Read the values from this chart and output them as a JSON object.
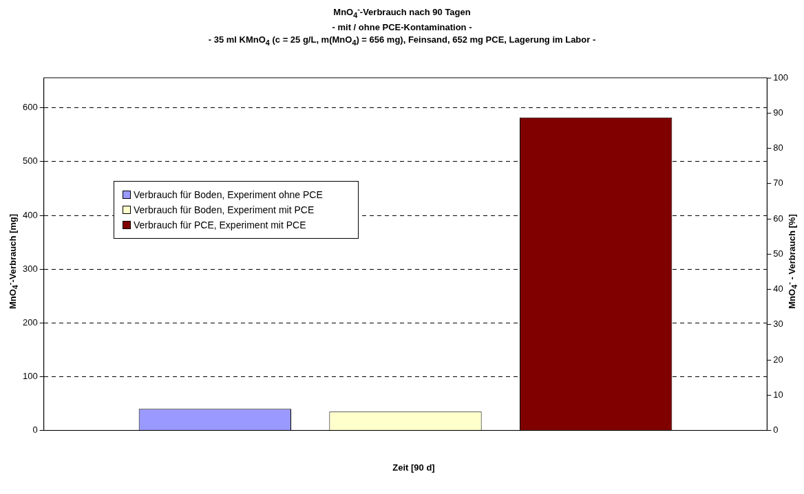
{
  "chart_data": {
    "type": "bar",
    "title": "MnO$_{4}$$^{-}$-Verbrauch nach 90 Tagen",
    "subtitle": "- mit / ohne PCE-Kontamination -\n-  35 ml KMnO$_{4}$ (c = 25 g/L, m(MnO$_{4}$) = 656 mg), Feinsand, 652 mg PCE, Lagerung im Labor -",
    "xlabel": "Zeit [90 d]",
    "ylabel": "MnO$_{4}$$^{-}$-Verbrauch [mg]",
    "y2label": "MnO$_{4}$$^{-}$ - Verbrauch [%]",
    "categories": [
      null
    ],
    "series": [
      {
        "name": "Verbrauch für Boden, Experiment ohne PCE",
        "color": "#9999ff",
        "values": [
          40
        ]
      },
      {
        "name": "Verbrauch für Boden, Experiment mit PCE",
        "color": "#ffffcc",
        "values": [
          35
        ]
      },
      {
        "name": "Verbrauch für PCE, Experiment mit PCE",
        "color": "#800000",
        "values": [
          582
        ]
      }
    ],
    "ylim": [
      0,
      656
    ],
    "yticks": [
      0,
      100,
      200,
      300,
      400,
      500,
      600
    ],
    "y2lim": [
      0,
      100
    ],
    "y2ticks": [
      0,
      10,
      20,
      30,
      40,
      50,
      60,
      70,
      80,
      90,
      100
    ],
    "grid": "y",
    "legend": "left"
  }
}
